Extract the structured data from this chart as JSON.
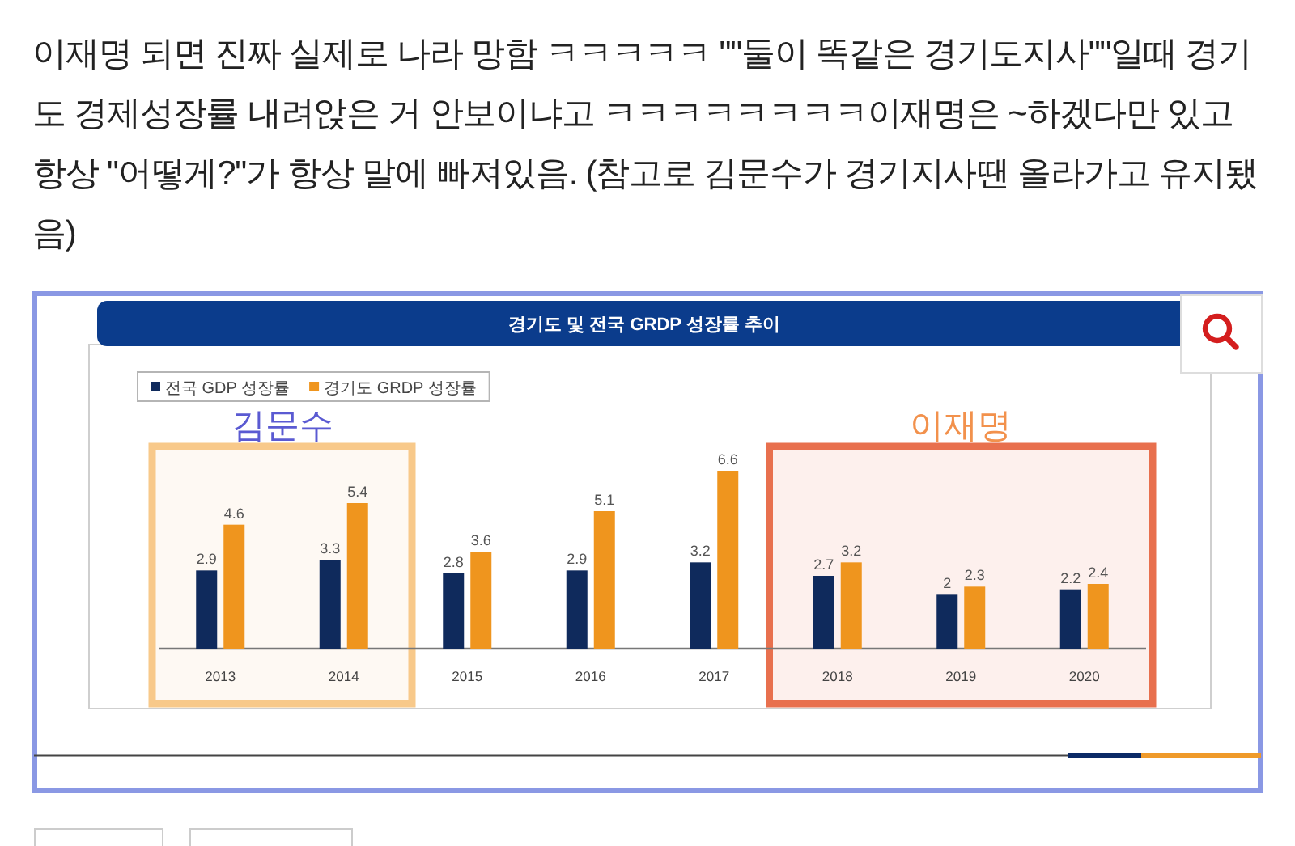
{
  "chart_data": {
    "type": "bar",
    "title": "경기도 및 전국 GRDP 성장률 추이",
    "categories": [
      "2013",
      "2014",
      "2015",
      "2016",
      "2017",
      "2018",
      "2019",
      "2020"
    ],
    "series": [
      {
        "name": "전국 GDP 성장률",
        "color": "#0f2a5c",
        "values": [
          2.9,
          3.3,
          2.8,
          2.9,
          3.2,
          2.7,
          2,
          2.2
        ]
      },
      {
        "name": "경기도 GRDP 성장률",
        "color": "#ef951e",
        "values": [
          4.6,
          5.4,
          3.6,
          5.1,
          6.6,
          3.2,
          2.3,
          2.4
        ]
      }
    ],
    "data_labels": true,
    "legend": "top left",
    "bands": [
      {
        "axis": "x",
        "from": "2013",
        "to": "2014",
        "label": "김문수",
        "color": "#f8c98a"
      },
      {
        "axis": "x",
        "from": "2018",
        "to": "2020",
        "label": "이재명",
        "color": "#e8704e"
      }
    ],
    "annotations": [
      "이재명 되면 진짜 실제로 나라 망함 ㅋㅋㅋㅋㅋ \"\"둘이 똑같은 경기도지사\"\"일때 경기도 경제성장률 내려앉은 거 안보이냐고 ㅋㅋㅋㅋㅋㅋㅋㅋ이재명은 ~하겠다만 있고 항상 \"어떻게?\"가 항상 말에 빠져있음. (참고로 김문수가 경기지사땐 올라가고 유지됐음)"
    ]
  }
}
